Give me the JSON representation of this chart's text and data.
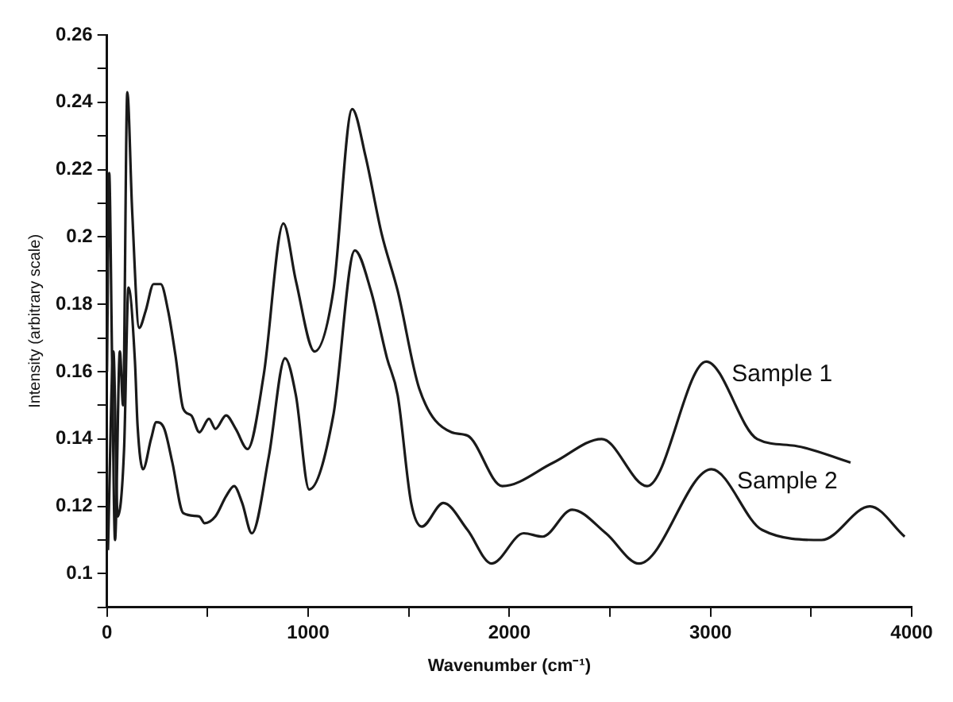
{
  "chart_data": {
    "type": "line",
    "xlabel": "Wavenumber (cm⁻¹)",
    "ylabel": "Intensity (arbitrary scale)",
    "xlim": [
      0,
      4000
    ],
    "xticks": [
      0,
      {
        "value": 500,
        "label": null
      },
      1000,
      {
        "value": 1500,
        "label": null
      },
      2000,
      {
        "value": 2500,
        "label": null
      },
      3000,
      {
        "value": 3500,
        "label": null
      },
      4000
    ],
    "ylim": [
      0.09,
      0.26
    ],
    "yticks": [
      {
        "value": 0.09,
        "label": null
      },
      0.1,
      {
        "value": 0.11,
        "label": null
      },
      0.12,
      {
        "value": 0.13,
        "label": null
      },
      0.14,
      {
        "value": 0.15,
        "label": null
      },
      0.16,
      {
        "value": 0.17,
        "label": null
      },
      0.18,
      {
        "value": 0.19,
        "label": null
      },
      0.2,
      {
        "value": 0.21,
        "label": null
      },
      0.22,
      {
        "value": 0.23,
        "label": null
      },
      0.24,
      {
        "value": 0.25,
        "label": null
      },
      0.26
    ],
    "grid": false,
    "legend": false,
    "marker": "none",
    "line_style": "solid",
    "series": [
      {
        "name": "Sample 1",
        "color": "#1a1a1a",
        "x": [
          0,
          11,
          25,
          40,
          64,
          80,
          101,
          125,
          160,
          192,
          232,
          267,
          304,
          340,
          379,
          419,
          459,
          507,
          539,
          592,
          640,
          699,
          779,
          877,
          939,
          1032,
          1125,
          1219,
          1285,
          1365,
          1445,
          1552,
          1712,
          1792,
          1965,
          2219,
          2459,
          2685,
          2979,
          3232,
          3418,
          3696
        ],
        "values": [
          0.16,
          0.219,
          0.165,
          0.11,
          0.166,
          0.15,
          0.243,
          0.208,
          0.173,
          0.178,
          0.186,
          0.186,
          0.178,
          0.165,
          0.149,
          0.147,
          0.142,
          0.146,
          0.143,
          0.147,
          0.143,
          0.137,
          0.159,
          0.204,
          0.187,
          0.166,
          0.184,
          0.238,
          0.224,
          0.201,
          0.184,
          0.155,
          0.142,
          0.141,
          0.126,
          0.133,
          0.14,
          0.126,
          0.163,
          0.14,
          0.138,
          0.133
        ]
      },
      {
        "name": "Sample 2",
        "color": "#1a1a1a",
        "x": [
          5,
          32,
          53,
          85,
          107,
          139,
          152,
          179,
          219,
          245,
          285,
          325,
          379,
          459,
          485,
          539,
          592,
          632,
          672,
          720,
          805,
          885,
          939,
          1005,
          1125,
          1232,
          1312,
          1392,
          1445,
          1512,
          1565,
          1672,
          1792,
          1912,
          2072,
          2165,
          2312,
          2480,
          2645,
          3005,
          3256,
          3552,
          3792,
          3965
        ],
        "values": [
          0.107,
          0.166,
          0.117,
          0.137,
          0.185,
          0.163,
          0.144,
          0.131,
          0.14,
          0.145,
          0.143,
          0.133,
          0.118,
          0.117,
          0.115,
          0.117,
          0.123,
          0.126,
          0.121,
          0.112,
          0.135,
          0.164,
          0.153,
          0.125,
          0.147,
          0.196,
          0.184,
          0.164,
          0.153,
          0.121,
          0.114,
          0.121,
          0.113,
          0.103,
          0.112,
          0.111,
          0.119,
          0.112,
          0.103,
          0.131,
          0.113,
          0.11,
          0.12,
          0.111
        ]
      }
    ]
  }
}
